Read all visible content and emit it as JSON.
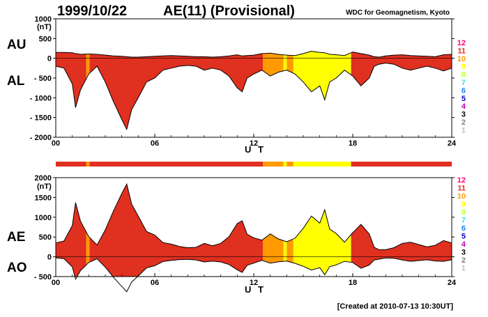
{
  "header": {
    "date": "1999/10/22",
    "title": "AE(11) (Provisional)",
    "source": "WDC for Geomagnetism, Kyoto"
  },
  "footer": {
    "created": "[Created at 2010-07-13 10:30UT]"
  },
  "colors": {
    "bg": "#ffffff",
    "trace": "#000000",
    "scale": {
      "12": "#ff0080",
      "11": "#e03020",
      "10": "#ff9a00",
      "9": "#ffff00",
      "8": "#c0ff40",
      "7": "#40e0e0",
      "6": "#2080ff",
      "5": "#0000c0",
      "4": "#c000c0",
      "3": "#000000",
      "2": "#808080",
      "1": "#c0c0c0"
    }
  },
  "station_scale": [
    "12",
    "11",
    "10",
    "9",
    "8",
    "7",
    "6",
    "5",
    "4",
    "3",
    "2",
    "1"
  ],
  "chart_data": [
    {
      "type": "area",
      "panel": "AU/AL",
      "labels": [
        "AU",
        "AL"
      ],
      "ylabel": "(nT)",
      "xlabel": "U T",
      "xlim": [
        0,
        24
      ],
      "ylim": [
        -2000,
        1000
      ],
      "xticks": [
        "00",
        "06",
        "12",
        "18",
        "24"
      ],
      "yticks": [
        "1000",
        "500",
        "0",
        "- 500",
        "- 1000",
        "- 1500",
        "- 2000"
      ],
      "ytick_values": [
        1000,
        500,
        0,
        -500,
        -1000,
        -1500,
        -2000
      ],
      "x": [
        0,
        0.5,
        1,
        1.2,
        1.5,
        2,
        2.5,
        3,
        3.5,
        4,
        4.3,
        4.6,
        5,
        5.5,
        6,
        6.5,
        7,
        7.5,
        8,
        8.5,
        9,
        9.5,
        10,
        10.5,
        11,
        11.3,
        11.6,
        12,
        12.5,
        13,
        13.5,
        14,
        14.5,
        15,
        15.5,
        16,
        16.3,
        16.6,
        17,
        17.5,
        18,
        18.5,
        19,
        19.3,
        19.6,
        20,
        20.5,
        21,
        21.5,
        22,
        22.5,
        23,
        23.5,
        24
      ],
      "series": [
        {
          "name": "AU",
          "values": [
            150,
            150,
            140,
            120,
            100,
            110,
            100,
            80,
            60,
            50,
            40,
            30,
            30,
            40,
            50,
            60,
            70,
            60,
            50,
            40,
            40,
            30,
            40,
            60,
            90,
            60,
            70,
            80,
            120,
            130,
            100,
            80,
            70,
            120,
            180,
            150,
            140,
            100,
            90,
            70,
            160,
            120,
            80,
            40,
            30,
            60,
            80,
            90,
            70,
            60,
            50,
            40,
            90,
            100
          ]
        },
        {
          "name": "AL",
          "values": [
            -200,
            -250,
            -650,
            -1250,
            -800,
            -400,
            -200,
            -600,
            -1100,
            -1550,
            -1800,
            -1300,
            -1000,
            -600,
            -500,
            -300,
            -250,
            -200,
            -180,
            -200,
            -300,
            -250,
            -300,
            -450,
            -750,
            -850,
            -500,
            -400,
            -300,
            -450,
            -350,
            -300,
            -400,
            -600,
            -850,
            -700,
            -1050,
            -600,
            -500,
            -300,
            -450,
            -700,
            -500,
            -200,
            -150,
            -120,
            -150,
            -250,
            -300,
            -250,
            -200,
            -250,
            -320,
            -250
          ]
        }
      ],
      "bands": [
        {
          "from": 0,
          "to": 1.85,
          "level": "11"
        },
        {
          "from": 1.85,
          "to": 2.05,
          "level": "10"
        },
        {
          "from": 2.05,
          "to": 12.55,
          "level": "11"
        },
        {
          "from": 12.55,
          "to": 13.8,
          "level": "10"
        },
        {
          "from": 13.8,
          "to": 14.0,
          "level": "9"
        },
        {
          "from": 14.0,
          "to": 14.4,
          "level": "10"
        },
        {
          "from": 14.4,
          "to": 17.9,
          "level": "9"
        },
        {
          "from": 17.9,
          "to": 24,
          "level": "11"
        }
      ]
    },
    {
      "type": "area",
      "panel": "AE/AO",
      "labels": [
        "AE",
        "AO"
      ],
      "ylabel": "(nT)",
      "xlabel": "U T",
      "xlim": [
        0,
        24
      ],
      "ylim": [
        -500,
        2000
      ],
      "xticks": [
        "00",
        "06",
        "12",
        "18",
        "24"
      ],
      "yticks": [
        "2000",
        "1500",
        "1000",
        "500",
        "0",
        "- 500"
      ],
      "ytick_values": [
        2000,
        1500,
        1000,
        500,
        0,
        -500
      ],
      "x": [
        0,
        0.5,
        1,
        1.2,
        1.5,
        2,
        2.5,
        3,
        3.5,
        4,
        4.3,
        4.6,
        5,
        5.5,
        6,
        6.5,
        7,
        7.5,
        8,
        8.5,
        9,
        9.5,
        10,
        10.5,
        11,
        11.3,
        11.6,
        12,
        12.5,
        13,
        13.5,
        14,
        14.5,
        15,
        15.5,
        16,
        16.3,
        16.6,
        17,
        17.5,
        18,
        18.5,
        19,
        19.3,
        19.6,
        20,
        20.5,
        21,
        21.5,
        22,
        22.5,
        23,
        23.5,
        24
      ],
      "series": [
        {
          "name": "AE",
          "values": [
            350,
            400,
            790,
            1370,
            900,
            510,
            300,
            680,
            1160,
            1600,
            1840,
            1330,
            1030,
            640,
            550,
            360,
            320,
            260,
            230,
            240,
            340,
            280,
            340,
            510,
            840,
            910,
            570,
            480,
            420,
            580,
            450,
            380,
            470,
            720,
            1030,
            850,
            1190,
            700,
            590,
            370,
            610,
            820,
            580,
            240,
            180,
            180,
            230,
            340,
            370,
            310,
            250,
            290,
            410,
            350
          ]
        },
        {
          "name": "AO",
          "values": [
            -25,
            -50,
            -255,
            -565,
            -350,
            -145,
            -50,
            -260,
            -520,
            -750,
            -880,
            -635,
            -485,
            -280,
            -225,
            -120,
            -90,
            -70,
            -65,
            -80,
            -130,
            -110,
            -130,
            -195,
            -330,
            -395,
            -215,
            -160,
            -90,
            -160,
            -125,
            -110,
            -165,
            -240,
            -335,
            -275,
            -455,
            -250,
            -205,
            -115,
            -145,
            -290,
            -210,
            -80,
            -60,
            -30,
            -35,
            -80,
            -115,
            -95,
            -75,
            -105,
            -115,
            -75
          ]
        }
      ],
      "bands": [
        {
          "from": 0,
          "to": 1.85,
          "level": "11"
        },
        {
          "from": 1.85,
          "to": 2.05,
          "level": "10"
        },
        {
          "from": 2.05,
          "to": 12.55,
          "level": "11"
        },
        {
          "from": 12.55,
          "to": 13.8,
          "level": "10"
        },
        {
          "from": 13.8,
          "to": 14.0,
          "level": "9"
        },
        {
          "from": 14.0,
          "to": 14.4,
          "level": "10"
        },
        {
          "from": 14.4,
          "to": 17.9,
          "level": "9"
        },
        {
          "from": 17.9,
          "to": 24,
          "level": "11"
        }
      ]
    }
  ]
}
